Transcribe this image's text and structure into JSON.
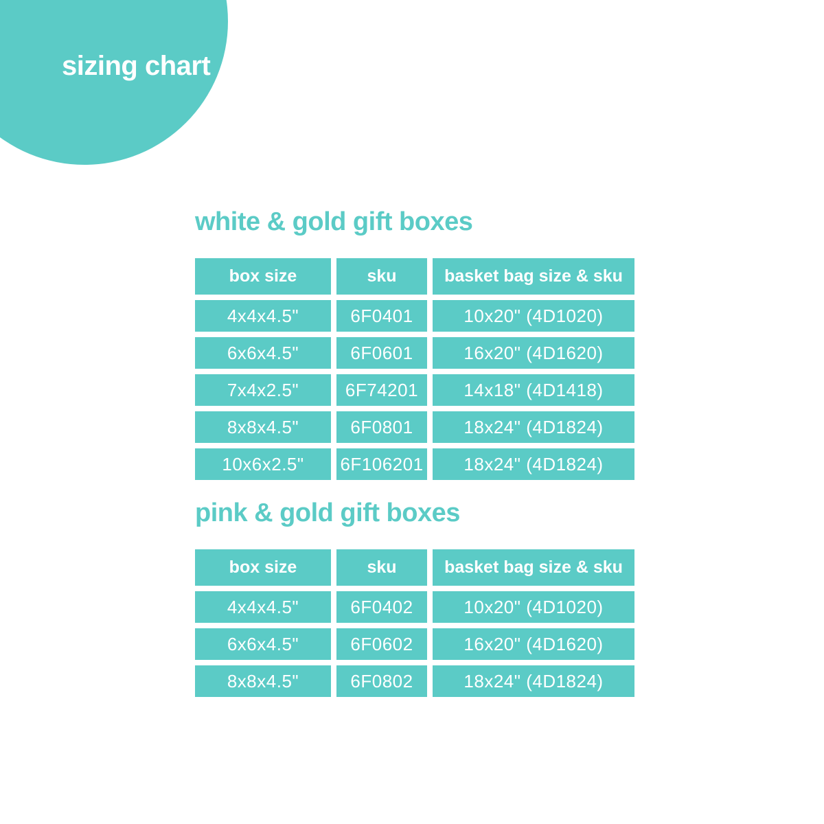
{
  "badge": {
    "label": "sizing chart"
  },
  "colors": {
    "teal": "#5BCBC6",
    "text_on_teal": "#FFFFFF",
    "background": "#FFFFFF"
  },
  "tables": [
    {
      "title": "white & gold gift boxes",
      "columns": [
        "box size",
        "sku",
        "basket bag size & sku"
      ],
      "rows": [
        [
          "4x4x4.5\"",
          "6F0401",
          "10x20\" (4D1020)"
        ],
        [
          "6x6x4.5\"",
          "6F0601",
          "16x20\" (4D1620)"
        ],
        [
          "7x4x2.5\"",
          "6F74201",
          "14x18\" (4D1418)"
        ],
        [
          "8x8x4.5\"",
          "6F0801",
          "18x24\" (4D1824)"
        ],
        [
          "10x6x2.5\"",
          "6F106201",
          "18x24\" (4D1824)"
        ]
      ]
    },
    {
      "title": "pink & gold gift boxes",
      "columns": [
        "box size",
        "sku",
        "basket bag size & sku"
      ],
      "rows": [
        [
          "4x4x4.5\"",
          "6F0402",
          "10x20\" (4D1020)"
        ],
        [
          "6x6x4.5\"",
          "6F0602",
          "16x20\" (4D1620)"
        ],
        [
          "8x8x4.5\"",
          "6F0802",
          "18x24\" (4D1824)"
        ]
      ]
    }
  ],
  "chart_data": [
    {
      "type": "table",
      "title": "white & gold gift boxes",
      "columns": [
        "box size",
        "sku",
        "basket bag size & sku"
      ],
      "rows": [
        [
          "4x4x4.5\"",
          "6F0401",
          "10x20\" (4D1020)"
        ],
        [
          "6x6x4.5\"",
          "6F0601",
          "16x20\" (4D1620)"
        ],
        [
          "7x4x2.5\"",
          "6F74201",
          "14x18\" (4D1418)"
        ],
        [
          "8x8x4.5\"",
          "6F0801",
          "18x24\" (4D1824)"
        ],
        [
          "10x6x2.5\"",
          "6F106201",
          "18x24\" (4D1824)"
        ]
      ]
    },
    {
      "type": "table",
      "title": "pink & gold gift boxes",
      "columns": [
        "box size",
        "sku",
        "basket bag size & sku"
      ],
      "rows": [
        [
          "4x4x4.5\"",
          "6F0402",
          "10x20\" (4D1020)"
        ],
        [
          "6x6x4.5\"",
          "6F0602",
          "16x20\" (4D1620)"
        ],
        [
          "8x8x4.5\"",
          "6F0802",
          "18x24\" (4D1824)"
        ]
      ]
    }
  ]
}
